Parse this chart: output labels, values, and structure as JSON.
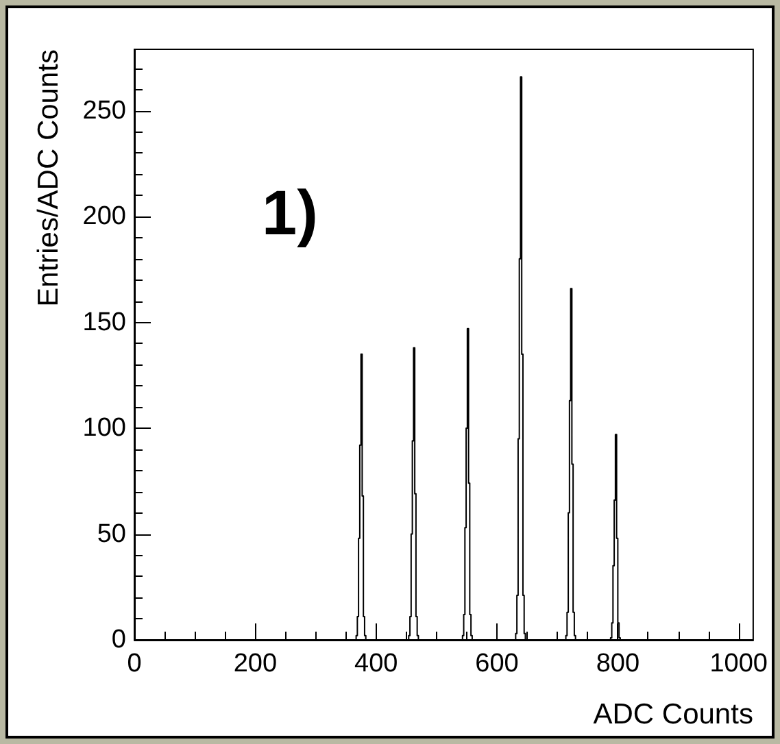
{
  "chart_data": {
    "type": "histogram",
    "xlabel": "ADC Counts",
    "ylabel": "Entries/ADC Counts",
    "annotations": [
      "1)"
    ],
    "color": "#000000",
    "bins": [
      0,
      367,
      369,
      371,
      373,
      375,
      377,
      379,
      381,
      383,
      454,
      456,
      458,
      460,
      462,
      464,
      466,
      468,
      470,
      543,
      545,
      547,
      549,
      551,
      553,
      555,
      557,
      559,
      631,
      633,
      635,
      637,
      639,
      641,
      643,
      645,
      647,
      714,
      716,
      718,
      720,
      722,
      724,
      726,
      728,
      730,
      788,
      790,
      792,
      794,
      796,
      798,
      800,
      802,
      804,
      1024
    ],
    "values": [
      0,
      2,
      11,
      48,
      92,
      135,
      68,
      11,
      2,
      0,
      2,
      11,
      50,
      94,
      138,
      69,
      11,
      2,
      0,
      2,
      12,
      53,
      100,
      147,
      74,
      12,
      2,
      0,
      3,
      21,
      95,
      180,
      266,
      135,
      21,
      3,
      0,
      2,
      13,
      60,
      113,
      166,
      83,
      13,
      2,
      0,
      1,
      8,
      35,
      66,
      97,
      48,
      8,
      1,
      0
    ],
    "xlim": [
      0,
      1024
    ],
    "xticks": [
      0,
      200,
      400,
      600,
      800,
      1000
    ],
    "ylim": [
      0,
      279
    ],
    "yticks": [
      0,
      50,
      100,
      150,
      200,
      250
    ],
    "grid": false
  }
}
